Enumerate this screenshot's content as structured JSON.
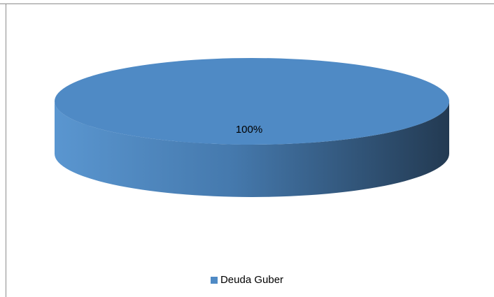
{
  "chart_data": {
    "type": "pie",
    "categories": [
      "Deuda Guber"
    ],
    "values": [
      100
    ],
    "data_labels": [
      "100%"
    ],
    "legend_placement": "bottom",
    "colors": {
      "series": "#4f8ac5",
      "top_face": "#4f8ac5",
      "side_light": "#5a96d0",
      "side_dark": "#233a52"
    }
  }
}
